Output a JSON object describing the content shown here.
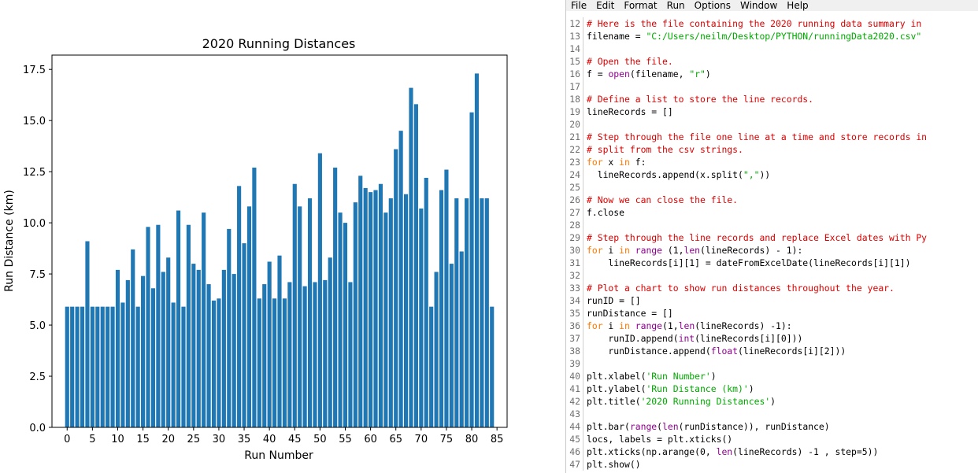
{
  "chart_data": {
    "type": "bar",
    "title": "2020 Running Distances",
    "xlabel": "Run Number",
    "ylabel": "Run Distance (km)",
    "xticks": [
      "0",
      "5",
      "10",
      "15",
      "20",
      "25",
      "30",
      "35",
      "40",
      "45",
      "50",
      "55",
      "60",
      "65",
      "70",
      "75",
      "80",
      "85"
    ],
    "yticks": [
      "0.0",
      "2.5",
      "5.0",
      "7.5",
      "10.0",
      "12.5",
      "15.0",
      "17.5"
    ],
    "xlim": [
      -3,
      87
    ],
    "ylim": [
      0,
      18.2
    ],
    "bar_color": "#1f77b4",
    "values": [
      5.9,
      5.9,
      5.9,
      5.9,
      9.1,
      5.9,
      5.9,
      5.9,
      5.9,
      5.9,
      7.7,
      6.1,
      7.2,
      8.7,
      5.9,
      7.4,
      9.8,
      6.8,
      9.9,
      7.6,
      8.3,
      6.1,
      10.6,
      5.9,
      9.9,
      8.0,
      7.7,
      10.5,
      7.0,
      6.2,
      6.3,
      7.7,
      9.7,
      7.5,
      11.8,
      9.0,
      10.8,
      12.7,
      6.3,
      7.0,
      8.1,
      6.3,
      8.4,
      6.3,
      7.1,
      11.9,
      10.8,
      6.9,
      11.2,
      7.1,
      13.4,
      7.2,
      8.3,
      12.7,
      10.5,
      10.0,
      7.1,
      11.0,
      12.3,
      11.7,
      11.5,
      11.6,
      11.9,
      10.5,
      11.2,
      13.6,
      14.5,
      11.4,
      16.6,
      15.8,
      10.7,
      12.2,
      5.9,
      7.6,
      11.6,
      12.6,
      8.0,
      11.2,
      8.6,
      11.2,
      15.4,
      17.3,
      11.2,
      11.2,
      5.9
    ]
  },
  "editor": {
    "menu": [
      "File",
      "Edit",
      "Format",
      "Run",
      "Options",
      "Window",
      "Help"
    ],
    "lines": [
      {
        "n": "12",
        "segments": [
          {
            "t": "# Here is the file containing the 2020 running data summary in",
            "c": "comment"
          }
        ]
      },
      {
        "n": "13",
        "segments": [
          {
            "t": "filename = ",
            "c": "code"
          },
          {
            "t": "\"C:/Users/neilm/Desktop/PYTHON/runningData2020.csv\"",
            "c": "string"
          }
        ]
      },
      {
        "n": "14",
        "segments": []
      },
      {
        "n": "15",
        "segments": [
          {
            "t": "# Open the file.",
            "c": "comment"
          }
        ]
      },
      {
        "n": "16",
        "segments": [
          {
            "t": "f = ",
            "c": "code"
          },
          {
            "t": "open",
            "c": "builtin"
          },
          {
            "t": "(filename, ",
            "c": "code"
          },
          {
            "t": "\"r\"",
            "c": "string"
          },
          {
            "t": ")",
            "c": "code"
          }
        ]
      },
      {
        "n": "17",
        "segments": []
      },
      {
        "n": "18",
        "segments": [
          {
            "t": "# Define a list to store the line records.",
            "c": "comment"
          }
        ]
      },
      {
        "n": "19",
        "segments": [
          {
            "t": "lineRecords = []",
            "c": "code"
          }
        ]
      },
      {
        "n": "20",
        "segments": []
      },
      {
        "n": "21",
        "segments": [
          {
            "t": "# Step through the file one line at a time and store records in",
            "c": "comment"
          }
        ]
      },
      {
        "n": "22",
        "segments": [
          {
            "t": "# split from the csv strings.",
            "c": "comment"
          }
        ]
      },
      {
        "n": "23",
        "segments": [
          {
            "t": "for",
            "c": "keyword"
          },
          {
            "t": " x ",
            "c": "code"
          },
          {
            "t": "in",
            "c": "keyword"
          },
          {
            "t": " f:",
            "c": "code"
          }
        ]
      },
      {
        "n": "24",
        "segments": [
          {
            "t": "  lineRecords.append(x.split(",
            "c": "code"
          },
          {
            "t": "\",\"",
            "c": "string"
          },
          {
            "t": "))",
            "c": "code"
          }
        ]
      },
      {
        "n": "25",
        "segments": []
      },
      {
        "n": "26",
        "segments": [
          {
            "t": "# Now we can close the file.",
            "c": "comment"
          }
        ]
      },
      {
        "n": "27",
        "segments": [
          {
            "t": "f.close",
            "c": "code"
          }
        ]
      },
      {
        "n": "28",
        "segments": []
      },
      {
        "n": "29",
        "segments": [
          {
            "t": "# Step through the line records and replace Excel dates with Py",
            "c": "comment"
          }
        ]
      },
      {
        "n": "30",
        "segments": [
          {
            "t": "for",
            "c": "keyword"
          },
          {
            "t": " i ",
            "c": "code"
          },
          {
            "t": "in",
            "c": "keyword"
          },
          {
            "t": " ",
            "c": "code"
          },
          {
            "t": "range",
            "c": "builtin"
          },
          {
            "t": " (1,",
            "c": "code"
          },
          {
            "t": "len",
            "c": "builtin"
          },
          {
            "t": "(lineRecords) - 1):",
            "c": "code"
          }
        ]
      },
      {
        "n": "31",
        "segments": [
          {
            "t": "    lineRecords[i][1] = dateFromExcelDate(lineRecords[i][1])",
            "c": "code"
          }
        ]
      },
      {
        "n": "32",
        "segments": []
      },
      {
        "n": "33",
        "segments": [
          {
            "t": "# Plot a chart to show run distances throughout the year.",
            "c": "comment"
          }
        ]
      },
      {
        "n": "34",
        "segments": [
          {
            "t": "runID = []",
            "c": "code"
          }
        ]
      },
      {
        "n": "35",
        "segments": [
          {
            "t": "runDistance = []",
            "c": "code"
          }
        ]
      },
      {
        "n": "36",
        "segments": [
          {
            "t": "for",
            "c": "keyword"
          },
          {
            "t": " i ",
            "c": "code"
          },
          {
            "t": "in",
            "c": "keyword"
          },
          {
            "t": " ",
            "c": "code"
          },
          {
            "t": "range",
            "c": "builtin"
          },
          {
            "t": "(1,",
            "c": "code"
          },
          {
            "t": "len",
            "c": "builtin"
          },
          {
            "t": "(lineRecords) -1):",
            "c": "code"
          }
        ]
      },
      {
        "n": "37",
        "segments": [
          {
            "t": "    runID.append(",
            "c": "code"
          },
          {
            "t": "int",
            "c": "builtin"
          },
          {
            "t": "(lineRecords[i][0]))",
            "c": "code"
          }
        ]
      },
      {
        "n": "38",
        "segments": [
          {
            "t": "    runDistance.append(",
            "c": "code"
          },
          {
            "t": "float",
            "c": "builtin"
          },
          {
            "t": "(lineRecords[i][2]))",
            "c": "code"
          }
        ]
      },
      {
        "n": "39",
        "segments": []
      },
      {
        "n": "40",
        "segments": [
          {
            "t": "plt.xlabel(",
            "c": "code"
          },
          {
            "t": "'Run Number'",
            "c": "string"
          },
          {
            "t": ")",
            "c": "code"
          }
        ]
      },
      {
        "n": "41",
        "segments": [
          {
            "t": "plt.ylabel(",
            "c": "code"
          },
          {
            "t": "'Run Distance (km)'",
            "c": "string"
          },
          {
            "t": ")",
            "c": "code"
          }
        ]
      },
      {
        "n": "42",
        "segments": [
          {
            "t": "plt.title(",
            "c": "code"
          },
          {
            "t": "'2020 Running Distances'",
            "c": "string"
          },
          {
            "t": ")",
            "c": "code"
          }
        ]
      },
      {
        "n": "43",
        "segments": []
      },
      {
        "n": "44",
        "segments": [
          {
            "t": "plt.bar(",
            "c": "code"
          },
          {
            "t": "range",
            "c": "builtin"
          },
          {
            "t": "(",
            "c": "code"
          },
          {
            "t": "len",
            "c": "builtin"
          },
          {
            "t": "(runDistance)), runDistance)",
            "c": "code"
          }
        ]
      },
      {
        "n": "45",
        "segments": [
          {
            "t": "locs, labels = plt.xticks()",
            "c": "code"
          }
        ]
      },
      {
        "n": "46",
        "segments": [
          {
            "t": "plt.xticks(np.arange(0, ",
            "c": "code"
          },
          {
            "t": "len",
            "c": "builtin"
          },
          {
            "t": "(lineRecords) -1 , step=5))",
            "c": "code"
          }
        ]
      },
      {
        "n": "47",
        "segments": [
          {
            "t": "plt.show()",
            "c": "code"
          }
        ]
      }
    ]
  }
}
